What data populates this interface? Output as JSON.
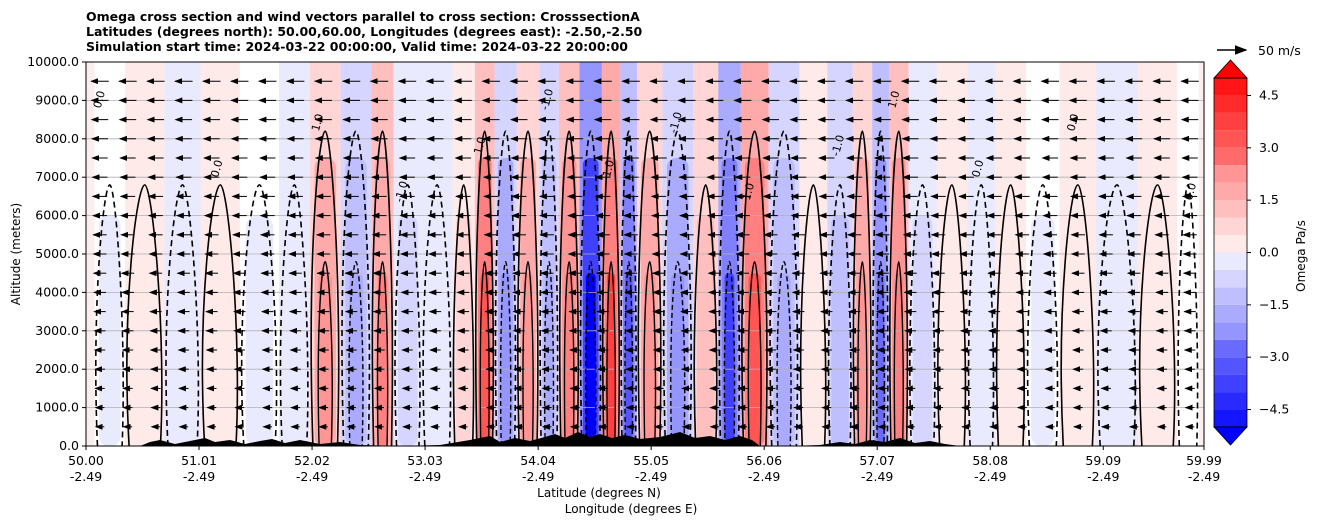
{
  "chart_data": {
    "type": "heatmap",
    "title_lines": [
      "Omega cross section and wind vectors parallel to cross section: CrosssectionA",
      "Latitudes (degrees north): 50.00,60.00, Longitudes (degrees east): -2.50,-2.50",
      "Simulation start time: 2024-03-22 00:00:00, Valid time: 2024-03-22 20:00:00"
    ],
    "xlabel_1": "Latitude (degrees N)",
    "xlabel_2": "Longitude (degrees E)",
    "ylabel": "Altitude (meters)",
    "colorbar_label": "Omega Pa/s",
    "quiver_key_label": "50 m/s",
    "ylim": [
      0,
      10000
    ],
    "xlim": [
      50.0,
      59.99
    ],
    "x_ticks": [
      {
        "lat": "50.00",
        "lon": "-2.49",
        "v": 50.0
      },
      {
        "lat": "51.01",
        "lon": "-2.49",
        "v": 51.01
      },
      {
        "lat": "52.02",
        "lon": "-2.49",
        "v": 52.02
      },
      {
        "lat": "53.03",
        "lon": "-2.49",
        "v": 53.03
      },
      {
        "lat": "54.04",
        "lon": "-2.49",
        "v": 54.04
      },
      {
        "lat": "55.05",
        "lon": "-2.49",
        "v": 55.05
      },
      {
        "lat": "56.06",
        "lon": "-2.49",
        "v": 56.06
      },
      {
        "lat": "57.07",
        "lon": "-2.49",
        "v": 57.07
      },
      {
        "lat": "58.08",
        "lon": "-2.49",
        "v": 58.08
      },
      {
        "lat": "59.09",
        "lon": "-2.49",
        "v": 59.09
      },
      {
        "lat": "59.99",
        "lon": "-2.49",
        "v": 59.99
      }
    ],
    "y_ticks": [
      {
        "label": "0.0",
        "v": 0
      },
      {
        "label": "1000.0",
        "v": 1000
      },
      {
        "label": "2000.0",
        "v": 2000
      },
      {
        "label": "3000.0",
        "v": 3000
      },
      {
        "label": "4000.0",
        "v": 4000
      },
      {
        "label": "5000.0",
        "v": 5000
      },
      {
        "label": "6000.0",
        "v": 6000
      },
      {
        "label": "7000.0",
        "v": 7000
      },
      {
        "label": "8000.0",
        "v": 8000
      },
      {
        "label": "9000.0",
        "v": 9000
      },
      {
        "label": "10000.0",
        "v": 10000
      }
    ],
    "colorbar_ticks": [
      {
        "label": "4.5",
        "v": 4.5
      },
      {
        "label": "3.0",
        "v": 3.0
      },
      {
        "label": "1.5",
        "v": 1.5
      },
      {
        "label": "0.0",
        "v": 0.0
      },
      {
        "label": "−1.5",
        "v": -1.5
      },
      {
        "label": "−3.0",
        "v": -3.0
      },
      {
        "label": "−4.5",
        "v": -4.5
      }
    ],
    "colorbar_range": [
      -5.0,
      5.0
    ],
    "colors": {
      "positive": "#ff0000",
      "negative": "#0000ff",
      "neutral": "#ffffff",
      "terrain": "#000000",
      "grid": "#b0b0b0"
    },
    "grid": true,
    "contour_levels": [
      -1.0,
      0.0,
      1.0
    ],
    "contour_labels": [
      "1.0",
      "0.0",
      "-1.0"
    ],
    "omega_bands": [
      {
        "lat": 50.15,
        "omega": -0.3
      },
      {
        "lat": 50.55,
        "omega": 0.6
      },
      {
        "lat": 50.85,
        "omega": -0.6
      },
      {
        "lat": 51.2,
        "omega": 0.5
      },
      {
        "lat": 51.55,
        "omega": -0.4
      },
      {
        "lat": 51.9,
        "omega": -0.8
      },
      {
        "lat": 52.1,
        "omega": 2.2
      },
      {
        "lat": 52.45,
        "omega": -1.8
      },
      {
        "lat": 52.65,
        "omega": 2.4
      },
      {
        "lat": 52.85,
        "omega": -1.2
      },
      {
        "lat": 53.15,
        "omega": -0.8
      },
      {
        "lat": 53.4,
        "omega": 1.0
      },
      {
        "lat": 53.55,
        "omega": 3.2
      },
      {
        "lat": 53.75,
        "omega": -2.0
      },
      {
        "lat": 53.95,
        "omega": 2.0
      },
      {
        "lat": 54.15,
        "omega": -1.6
      },
      {
        "lat": 54.3,
        "omega": 2.6
      },
      {
        "lat": 54.52,
        "omega": -5.0
      },
      {
        "lat": 54.7,
        "omega": 3.6
      },
      {
        "lat": 54.85,
        "omega": -3.2
      },
      {
        "lat": 55.0,
        "omega": 2.0
      },
      {
        "lat": 55.3,
        "omega": -2.2
      },
      {
        "lat": 55.55,
        "omega": 1.4
      },
      {
        "lat": 55.75,
        "omega": -3.6
      },
      {
        "lat": 55.95,
        "omega": 3.4
      },
      {
        "lat": 56.25,
        "omega": -1.6
      },
      {
        "lat": 56.5,
        "omega": 0.5
      },
      {
        "lat": 56.75,
        "omega": -1.4
      },
      {
        "lat": 56.95,
        "omega": 2.0
      },
      {
        "lat": 57.1,
        "omega": -3.0
      },
      {
        "lat": 57.25,
        "omega": 2.6
      },
      {
        "lat": 57.45,
        "omega": -1.2
      },
      {
        "lat": 57.75,
        "omega": 0.5
      },
      {
        "lat": 58.0,
        "omega": -0.8
      },
      {
        "lat": 58.25,
        "omega": 0.6
      },
      {
        "lat": 58.55,
        "omega": -0.4
      },
      {
        "lat": 58.85,
        "omega": 0.8
      },
      {
        "lat": 59.2,
        "omega": -0.5
      },
      {
        "lat": 59.6,
        "omega": 0.7
      },
      {
        "lat": 59.9,
        "omega": -0.2
      }
    ]
  }
}
